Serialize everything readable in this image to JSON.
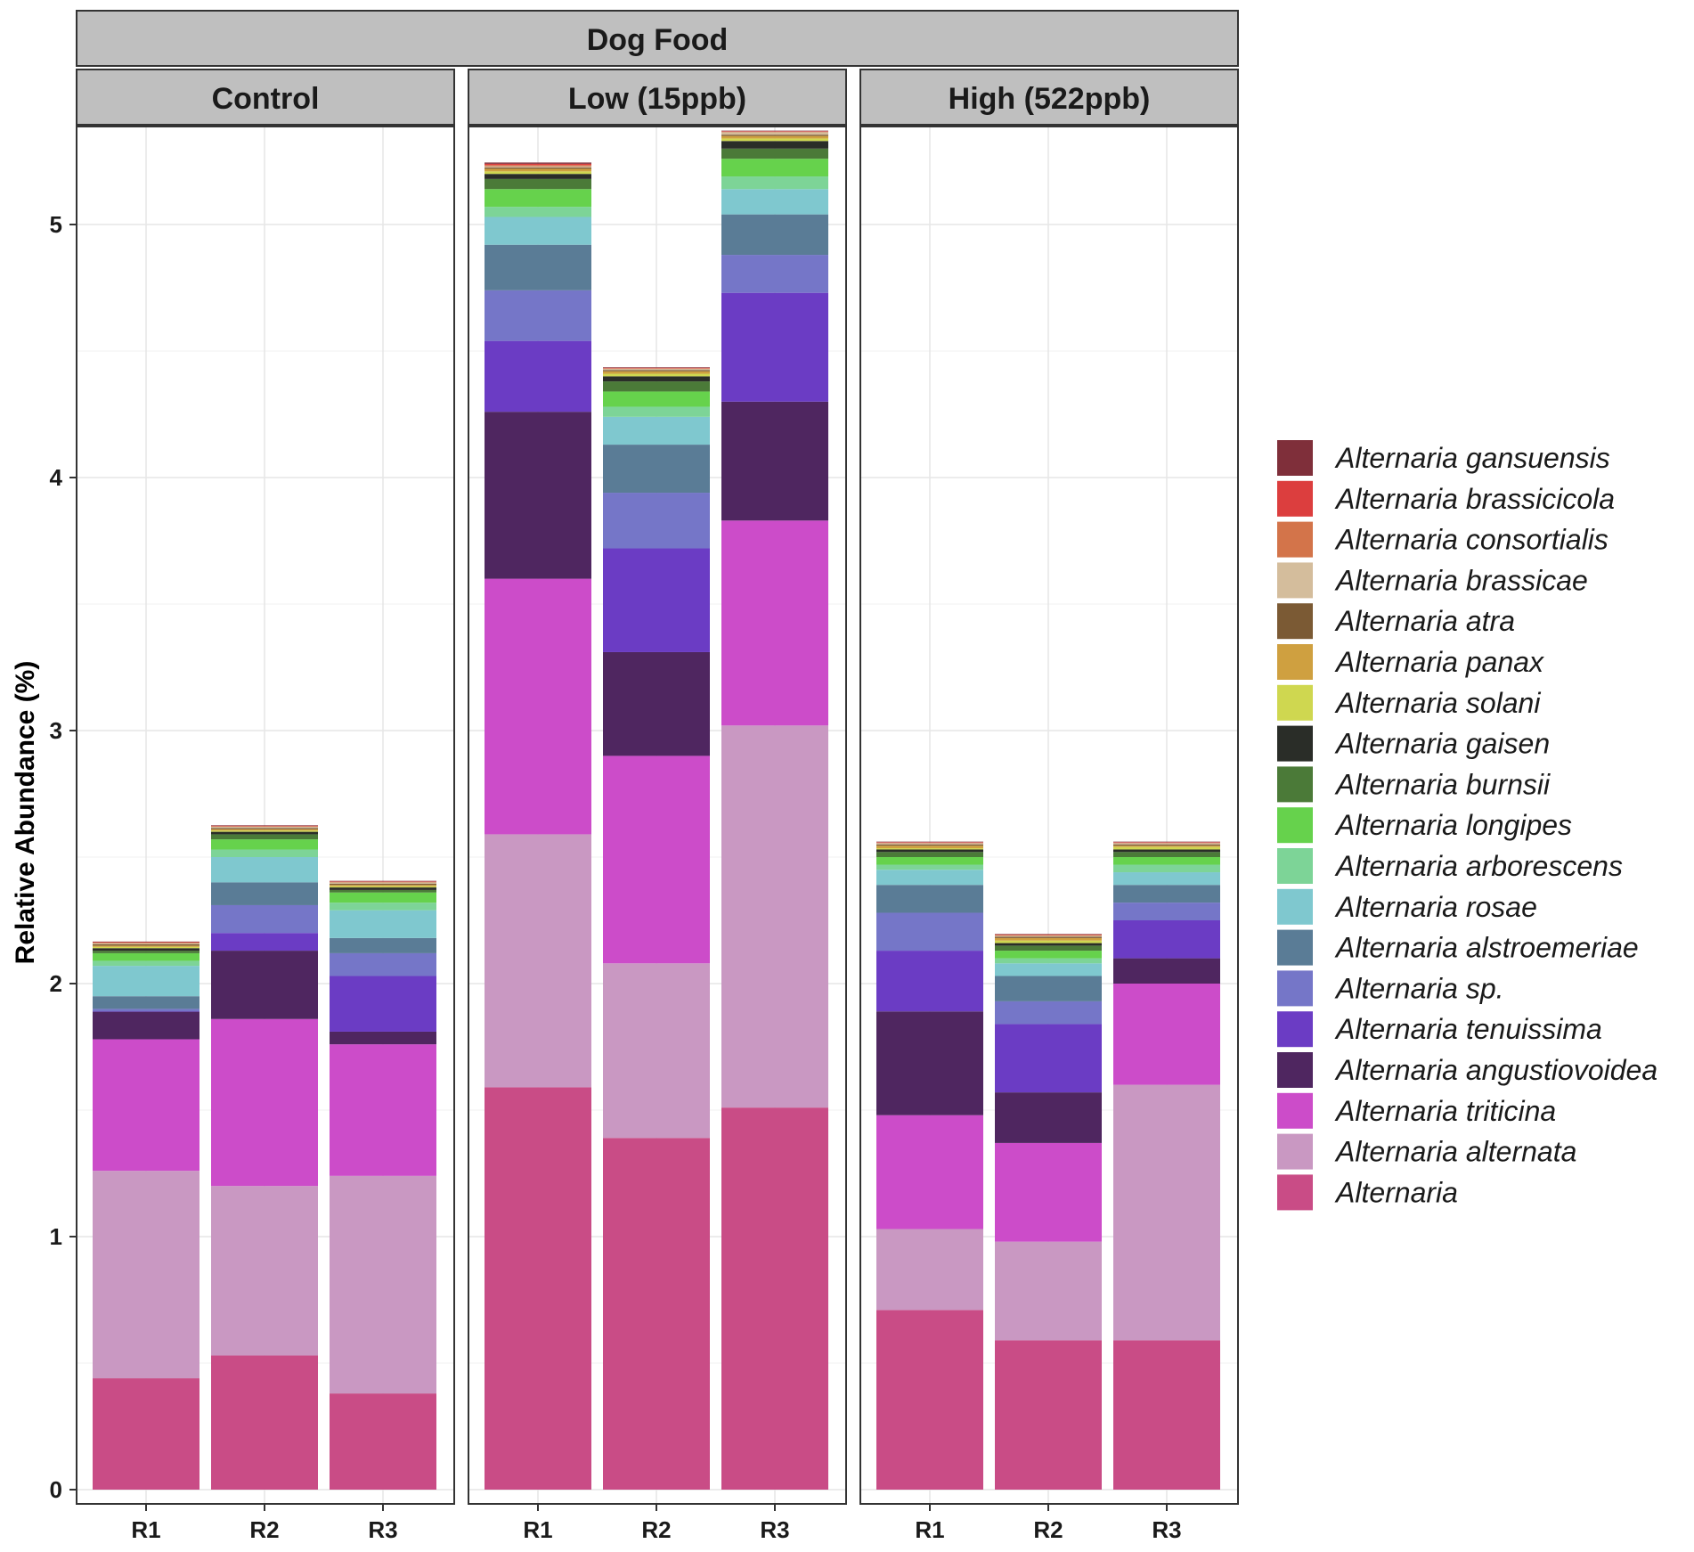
{
  "chart_data": {
    "type": "bar",
    "stacked": true,
    "title": "Dog Food",
    "xlabel": "",
    "ylabel": "Relative Abundance (%)",
    "ylim": [
      0,
      5.4
    ],
    "yticks": [
      0,
      1,
      2,
      3,
      4,
      5
    ],
    "categories": [
      "R1",
      "R2",
      "R3"
    ],
    "facets": [
      "Control",
      "Low (15ppb)",
      "High (522ppb)"
    ],
    "series": [
      {
        "name": "Alternaria",
        "color": "#c94c86",
        "values": [
          [
            0.44,
            0.53,
            0.38
          ],
          [
            1.59,
            1.39,
            1.51
          ],
          [
            0.71,
            0.59,
            0.59
          ]
        ]
      },
      {
        "name": "Alternaria alternata",
        "color": "#c998c2",
        "values": [
          [
            0.82,
            0.67,
            0.86
          ],
          [
            1.0,
            0.69,
            1.51
          ],
          [
            0.32,
            0.39,
            1.01
          ]
        ]
      },
      {
        "name": "Alternaria triticina",
        "color": "#cc4cc9",
        "values": [
          [
            0.52,
            0.66,
            0.52
          ],
          [
            1.01,
            0.82,
            0.81
          ],
          [
            0.45,
            0.39,
            0.4
          ]
        ]
      },
      {
        "name": "Alternaria angustiovoidea",
        "color": "#4f2660",
        "values": [
          [
            0.11,
            0.27,
            0.05
          ],
          [
            0.66,
            0.41,
            0.47
          ],
          [
            0.41,
            0.2,
            0.1
          ]
        ]
      },
      {
        "name": "Alternaria tenuissima",
        "color": "#6b3cc4",
        "values": [
          [
            0.0,
            0.07,
            0.22
          ],
          [
            0.28,
            0.41,
            0.43
          ],
          [
            0.24,
            0.27,
            0.15
          ]
        ]
      },
      {
        "name": "Alternaria sp.",
        "color": "#7576c8",
        "values": [
          [
            0.01,
            0.11,
            0.09
          ],
          [
            0.2,
            0.22,
            0.15
          ],
          [
            0.15,
            0.09,
            0.07
          ]
        ]
      },
      {
        "name": "Alternaria alstroemeriae",
        "color": "#5a7c96",
        "values": [
          [
            0.05,
            0.09,
            0.06
          ],
          [
            0.18,
            0.19,
            0.16
          ],
          [
            0.11,
            0.1,
            0.07
          ]
        ]
      },
      {
        "name": "Alternaria rosae",
        "color": "#7fc8cf",
        "values": [
          [
            0.12,
            0.1,
            0.11
          ],
          [
            0.11,
            0.11,
            0.1
          ],
          [
            0.06,
            0.05,
            0.05
          ]
        ]
      },
      {
        "name": "Alternaria arborescens",
        "color": "#7dd497",
        "values": [
          [
            0.02,
            0.03,
            0.03
          ],
          [
            0.04,
            0.04,
            0.05
          ],
          [
            0.02,
            0.02,
            0.03
          ]
        ]
      },
      {
        "name": "Alternaria longipes",
        "color": "#66d24c",
        "values": [
          [
            0.03,
            0.04,
            0.04
          ],
          [
            0.07,
            0.06,
            0.07
          ],
          [
            0.03,
            0.03,
            0.03
          ]
        ]
      },
      {
        "name": "Alternaria burnsii",
        "color": "#4b7a38",
        "values": [
          [
            0.01,
            0.02,
            0.01
          ],
          [
            0.04,
            0.04,
            0.04
          ],
          [
            0.02,
            0.02,
            0.02
          ]
        ]
      },
      {
        "name": "Alternaria gaisen",
        "color": "#2a2d28",
        "values": [
          [
            0.01,
            0.01,
            0.01
          ],
          [
            0.02,
            0.02,
            0.03
          ],
          [
            0.01,
            0.01,
            0.01
          ]
        ]
      },
      {
        "name": "Alternaria solani",
        "color": "#cfd750",
        "values": [
          [
            0.005,
            0.005,
            0.005
          ],
          [
            0.01,
            0.01,
            0.01
          ],
          [
            0.005,
            0.01,
            0.01
          ]
        ]
      },
      {
        "name": "Alternaria panax",
        "color": "#cfa040",
        "values": [
          [
            0.005,
            0.005,
            0.005
          ],
          [
            0.01,
            0.01,
            0.01
          ],
          [
            0.01,
            0.01,
            0.005
          ]
        ]
      },
      {
        "name": "Alternaria atra",
        "color": "#7b5a34",
        "values": [
          [
            0.005,
            0.005,
            0.005
          ],
          [
            0.005,
            0.005,
            0.005
          ],
          [
            0.005,
            0.005,
            0.005
          ]
        ]
      },
      {
        "name": "Alternaria brassicae",
        "color": "#d4bd9c",
        "values": [
          [
            0.005,
            0.005,
            0.005
          ],
          [
            0.005,
            0.005,
            0.01
          ],
          [
            0.005,
            0.005,
            0.005
          ]
        ]
      },
      {
        "name": "Alternaria consortialis",
        "color": "#d3744a",
        "values": [
          [
            0.002,
            0.002,
            0.002
          ],
          [
            0.005,
            0.002,
            0.002
          ],
          [
            0.002,
            0.002,
            0.002
          ]
        ]
      },
      {
        "name": "Alternaria brassicicola",
        "color": "#dc3e3e",
        "values": [
          [
            0.002,
            0.002,
            0.002
          ],
          [
            0.005,
            0.002,
            0.002
          ],
          [
            0.002,
            0.002,
            0.002
          ]
        ]
      },
      {
        "name": "Alternaria gansuensis",
        "color": "#7f2f3a",
        "values": [
          [
            0.002,
            0.002,
            0.002
          ],
          [
            0.005,
            0.002,
            0.002
          ],
          [
            0.002,
            0.002,
            0.002
          ]
        ]
      }
    ]
  }
}
